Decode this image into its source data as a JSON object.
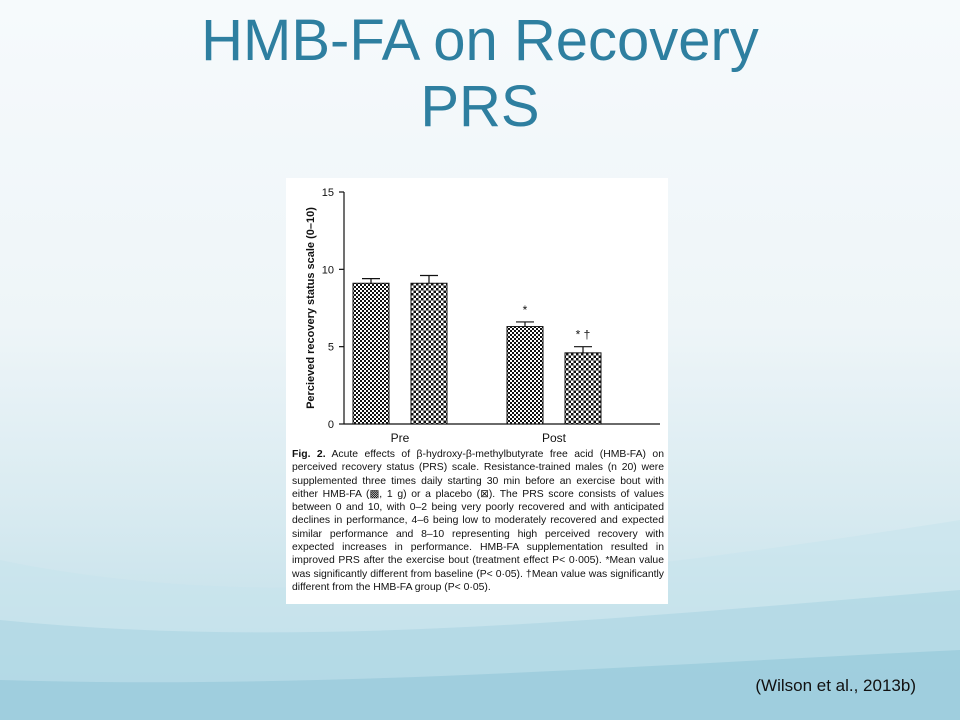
{
  "slide": {
    "title_line1": "HMB-FA on Recovery",
    "title_line2": "PRS",
    "citation": "(Wilson et al., 2013b)",
    "accent_color": "#2e7fa0"
  },
  "chart_data": {
    "type": "bar",
    "categories": [
      "Pre",
      "Post"
    ],
    "series": [
      {
        "name": "HMB-FA",
        "values": [
          9.1,
          6.3
        ],
        "errors": [
          0.3,
          0.3
        ],
        "annotations": [
          "",
          "*"
        ]
      },
      {
        "name": "Placebo",
        "values": [
          9.1,
          4.6
        ],
        "errors": [
          0.5,
          0.4
        ],
        "annotations": [
          "",
          "* †"
        ]
      }
    ],
    "ylabel": "Percieved recovery status scale (0–10)",
    "xlabel": "",
    "ylim": [
      0,
      15
    ],
    "yticks": [
      "0",
      "5",
      "10",
      "15"
    ],
    "grid": false,
    "legend": "none"
  },
  "caption": {
    "fig_label": "Fig. 2.",
    "text": " Acute effects of β-hydroxy-β-methylbutyrate free acid (HMB-FA) on perceived recovery status (PRS) scale. Resistance-trained males (n 20) were supplemented three times daily starting 30 min before an exercise bout with either HMB-FA (▩, 1 g) or a placebo (⊠). The PRS score consists of values between 0 and 10, with 0–2 being very poorly recovered and with anticipated declines in performance, 4–6 being low to moderately recovered and expected similar performance and 8–10 representing high perceived recovery with expected increases in performance. HMB-FA supplementation resulted in improved PRS after the exercise bout (treatment effect P< 0·005). *Mean value was significantly different from baseline (P< 0·05). †Mean value was significantly different from the HMB-FA group (P< 0·05)."
  }
}
